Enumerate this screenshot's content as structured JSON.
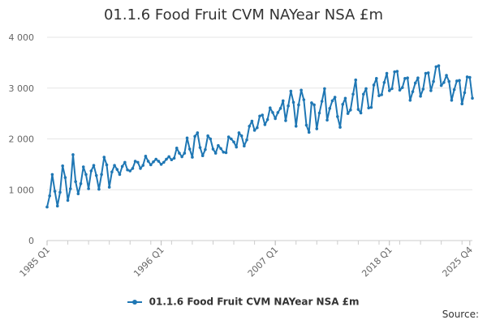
{
  "title": "01.1.6 Food Fruit CVM NAYear NSA £m",
  "source_label": "Source:",
  "chart_data": {
    "type": "line",
    "title": "01.1.6 Food Fruit CVM NAYear NSA £m",
    "xlabel": "",
    "ylabel": "",
    "ylim": [
      0,
      4000
    ],
    "yticks": [
      0,
      1000,
      2000,
      3000,
      4000
    ],
    "ytick_labels": [
      "0",
      "1 000",
      "2 000",
      "3 000",
      "4 000"
    ],
    "xtick_labels": [
      "1985 Q1",
      "1996 Q1",
      "2007 Q1",
      "2018 Q1",
      "2025 Q4"
    ],
    "xtick_indices": [
      0,
      44,
      88,
      132,
      163
    ],
    "grid": true,
    "legend_position": "bottom",
    "color": "#1f77b4",
    "series": [
      {
        "name": "01.1.6 Food Fruit CVM NAYear NSA £m",
        "values": [
          660,
          880,
          1300,
          970,
          680,
          950,
          1470,
          1240,
          790,
          1020,
          1690,
          1160,
          920,
          1120,
          1450,
          1300,
          1020,
          1370,
          1480,
          1280,
          1010,
          1300,
          1640,
          1490,
          1050,
          1350,
          1480,
          1400,
          1300,
          1460,
          1540,
          1390,
          1370,
          1420,
          1560,
          1540,
          1420,
          1480,
          1660,
          1560,
          1490,
          1550,
          1600,
          1560,
          1500,
          1540,
          1600,
          1650,
          1590,
          1620,
          1820,
          1720,
          1650,
          1720,
          2020,
          1800,
          1640,
          2050,
          2120,
          1830,
          1670,
          1790,
          2060,
          2000,
          1800,
          1720,
          1870,
          1810,
          1740,
          1730,
          2040,
          2000,
          1940,
          1840,
          2120,
          2060,
          1860,
          1980,
          2250,
          2350,
          2170,
          2220,
          2450,
          2470,
          2280,
          2380,
          2610,
          2520,
          2400,
          2520,
          2600,
          2750,
          2360,
          2650,
          2940,
          2720,
          2250,
          2670,
          2960,
          2770,
          2270,
          2130,
          2710,
          2670,
          2200,
          2510,
          2740,
          2990,
          2370,
          2600,
          2750,
          2820,
          2440,
          2230,
          2680,
          2800,
          2500,
          2570,
          2880,
          3160,
          2580,
          2510,
          2880,
          2990,
          2610,
          2620,
          3060,
          3190,
          2850,
          2870,
          3110,
          3290,
          2950,
          2990,
          3320,
          3330,
          2960,
          3010,
          3190,
          3200,
          2760,
          2930,
          3100,
          3200,
          2840,
          2980,
          3290,
          3300,
          2950,
          3130,
          3420,
          3440,
          3050,
          3110,
          3250,
          3130,
          2760,
          2970,
          3140,
          3150,
          2690,
          2910,
          3220,
          3210,
          2800
        ]
      }
    ]
  }
}
